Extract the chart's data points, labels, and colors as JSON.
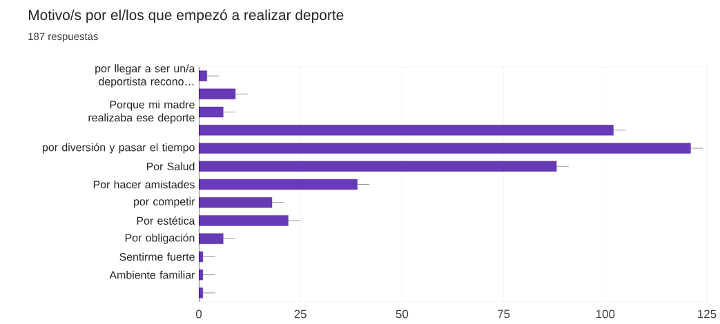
{
  "chart_data": {
    "type": "bar",
    "orientation": "horizontal",
    "title": "Motivo/s por el/los que empezó a realizar deporte",
    "subtitle": "187 respuestas",
    "categories": [
      "por llegar a ser un/a deportista recono…",
      null,
      "Porque mi madre realizaba ese deporte",
      null,
      "por diversión y pasar el tiempo",
      "Por Salud",
      "Por hacer amistades",
      "por competir",
      "Por estética",
      "Por obligación",
      "Sentirme fuerte",
      "Ambiente familiar",
      null
    ],
    "values": [
      2,
      9,
      6,
      102,
      121,
      88,
      39,
      18,
      22,
      6,
      1,
      1,
      1
    ],
    "errors": [
      [
        2,
        5
      ],
      [
        9,
        12
      ],
      [
        6,
        9
      ],
      [
        102,
        105
      ],
      [
        121,
        124
      ],
      [
        88,
        91
      ],
      [
        39,
        42
      ],
      [
        18,
        21
      ],
      [
        22,
        25
      ],
      [
        6,
        9
      ],
      [
        1,
        4
      ],
      [
        1,
        4
      ],
      [
        1,
        4
      ]
    ],
    "color": "#673ab7",
    "xlim": [
      0,
      125
    ],
    "xticks": [
      0,
      25,
      50,
      75,
      100,
      125
    ],
    "grid": "x"
  }
}
